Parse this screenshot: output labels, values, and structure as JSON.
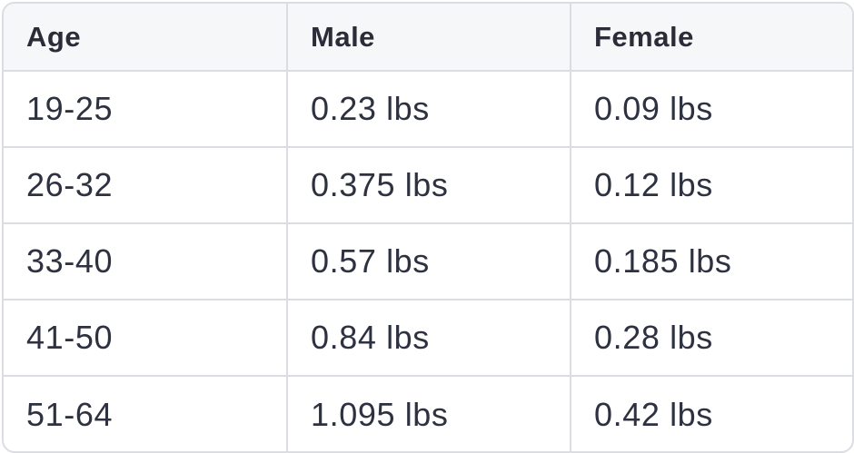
{
  "table": {
    "headers": [
      "Age",
      "Male",
      "Female"
    ],
    "rows": [
      [
        "19-25",
        "0.23 lbs",
        "0.09 lbs"
      ],
      [
        "26-32",
        "0.375 lbs",
        "0.12 lbs"
      ],
      [
        "33-40",
        "0.57 lbs",
        "0.185 lbs"
      ],
      [
        "41-50",
        "0.84 lbs",
        "0.28 lbs"
      ],
      [
        "51-64",
        "1.095 lbs",
        "0.42 lbs"
      ]
    ]
  },
  "colors": {
    "border": "#dcdde3",
    "header_bg": "#f6f7f9",
    "text": "#2d3140"
  }
}
